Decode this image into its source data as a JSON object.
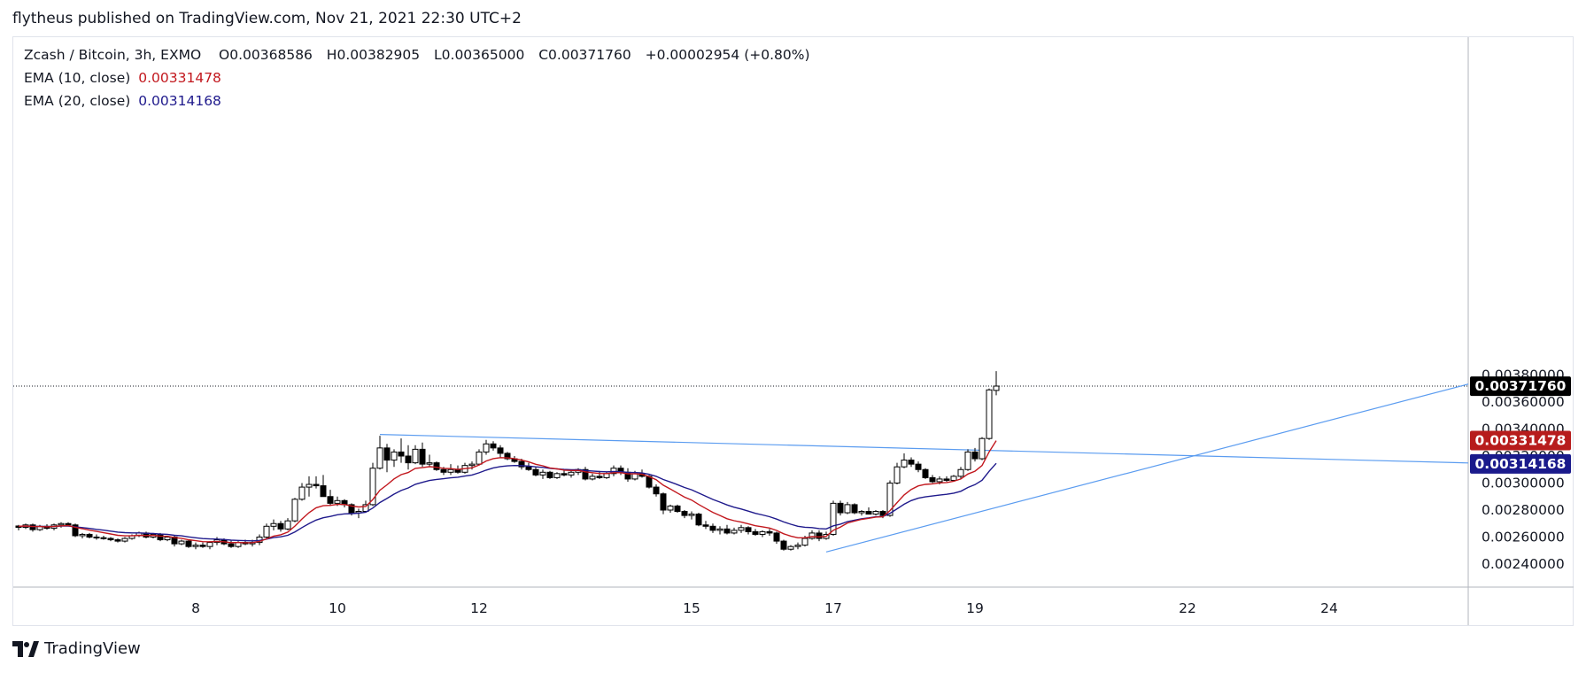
{
  "header": {
    "publish_line": "flytheus published on TradingView.com, Nov 21, 2021 22:30 UTC+2"
  },
  "brand": {
    "name": "TradingView"
  },
  "legend": {
    "symbol": "Zcash / Bitcoin, 3h, EXMO",
    "open_label": "O",
    "open": "0.00368586",
    "high_label": "H",
    "high": "0.00382905",
    "low_label": "L",
    "low": "0.00365000",
    "close_label": "C",
    "close": "0.00371760",
    "change": "+0.00002954 (+0.80%)",
    "ema10_label": "EMA (10, close)",
    "ema10_value": "0.00331478",
    "ema20_label": "EMA (20, close)",
    "ema20_value": "0.00314168"
  },
  "colors": {
    "ema10": "#c2181e",
    "ema20": "#1f1a8c",
    "trendline": "#5b9cf0",
    "candle_up_fill": "#ffffff",
    "candle_down_fill": "#000000",
    "candle_stroke": "#000000",
    "last_price_bg": "#000000",
    "ema10_badge_bg": "#b71c1c",
    "ema20_badge_bg": "#1a1a8c"
  },
  "chart_data": {
    "type": "candlestick",
    "title": "Zcash / Bitcoin, 3h, EXMO",
    "x_axis": {
      "ticks": [
        "8",
        "10",
        "12",
        "15",
        "17",
        "19",
        "22",
        "24"
      ],
      "tick_index": [
        25,
        45,
        65,
        95,
        115,
        135,
        165,
        185
      ]
    },
    "y_axis": {
      "ticks": [
        "0.00240000",
        "0.00260000",
        "0.00280000",
        "0.00300000",
        "0.00320000",
        "0.00340000",
        "0.00360000",
        "0.00380000"
      ],
      "range": [
        0.0023,
        0.0039
      ],
      "position": "right"
    },
    "price_labels": {
      "last": "0.00371760",
      "ema10": "0.00331478",
      "ema20": "0.00314168"
    },
    "candles": [
      [
        0.002682,
        0.00269,
        0.00265,
        0.002672
      ],
      [
        0.002672,
        0.0027,
        0.00266,
        0.00269
      ],
      [
        0.00269,
        0.0027,
        0.00264,
        0.002655
      ],
      [
        0.002655,
        0.00269,
        0.002645,
        0.00268
      ],
      [
        0.00268,
        0.002695,
        0.002655,
        0.002665
      ],
      [
        0.002665,
        0.0027,
        0.00265,
        0.00269
      ],
      [
        0.00269,
        0.00271,
        0.00267,
        0.0027
      ],
      [
        0.0027,
        0.00271,
        0.00268,
        0.00269
      ],
      [
        0.00269,
        0.0027,
        0.0026,
        0.00261
      ],
      [
        0.00261,
        0.00263,
        0.00259,
        0.00262
      ],
      [
        0.00262,
        0.00263,
        0.00259,
        0.0026
      ],
      [
        0.0026,
        0.00262,
        0.00258,
        0.002595
      ],
      [
        0.002595,
        0.00261,
        0.00258,
        0.00259
      ],
      [
        0.00259,
        0.0026,
        0.00257,
        0.00258
      ],
      [
        0.00258,
        0.00259,
        0.00256,
        0.00257
      ],
      [
        0.00257,
        0.0026,
        0.00256,
        0.00259
      ],
      [
        0.00259,
        0.00262,
        0.00258,
        0.00261
      ],
      [
        0.00261,
        0.00264,
        0.0026,
        0.00263
      ],
      [
        0.00263,
        0.00264,
        0.00259,
        0.0026
      ],
      [
        0.0026,
        0.00263,
        0.00259,
        0.00262
      ],
      [
        0.00262,
        0.00263,
        0.00257,
        0.00258
      ],
      [
        0.00258,
        0.00261,
        0.00257,
        0.0026
      ],
      [
        0.0026,
        0.00261,
        0.00253,
        0.00255
      ],
      [
        0.00255,
        0.00258,
        0.00254,
        0.00257
      ],
      [
        0.00257,
        0.00258,
        0.00252,
        0.00253
      ],
      [
        0.00253,
        0.00256,
        0.00251,
        0.00254
      ],
      [
        0.00254,
        0.00256,
        0.00252,
        0.00253
      ],
      [
        0.00253,
        0.00257,
        0.00251,
        0.00256
      ],
      [
        0.00256,
        0.0026,
        0.00254,
        0.00258
      ],
      [
        0.00258,
        0.00259,
        0.00254,
        0.00255
      ],
      [
        0.00255,
        0.00258,
        0.00252,
        0.00253
      ],
      [
        0.00253,
        0.00257,
        0.00252,
        0.00256
      ],
      [
        0.00256,
        0.00258,
        0.00254,
        0.00255
      ],
      [
        0.00255,
        0.00258,
        0.00253,
        0.00256
      ],
      [
        0.00256,
        0.00262,
        0.00254,
        0.0026
      ],
      [
        0.0026,
        0.0027,
        0.00259,
        0.00268
      ],
      [
        0.00268,
        0.00273,
        0.00265,
        0.0027
      ],
      [
        0.0027,
        0.00272,
        0.00264,
        0.00266
      ],
      [
        0.00266,
        0.00274,
        0.00265,
        0.00272
      ],
      [
        0.00272,
        0.00289,
        0.00271,
        0.00288
      ],
      [
        0.00288,
        0.003,
        0.00287,
        0.00297
      ],
      [
        0.00297,
        0.00305,
        0.0029,
        0.00299
      ],
      [
        0.00299,
        0.00305,
        0.00296,
        0.00298
      ],
      [
        0.00298,
        0.00306,
        0.0029,
        0.0029
      ],
      [
        0.0029,
        0.00295,
        0.00283,
        0.00285
      ],
      [
        0.00285,
        0.0029,
        0.00283,
        0.00287
      ],
      [
        0.00287,
        0.00288,
        0.00282,
        0.00284
      ],
      [
        0.00284,
        0.00285,
        0.00276,
        0.00278
      ],
      [
        0.00278,
        0.00281,
        0.00274,
        0.00279
      ],
      [
        0.00279,
        0.00287,
        0.00278,
        0.00284
      ],
      [
        0.00284,
        0.00315,
        0.00283,
        0.00311
      ],
      [
        0.00311,
        0.00335,
        0.0031,
        0.00326
      ],
      [
        0.00326,
        0.00329,
        0.00308,
        0.00317
      ],
      [
        0.00317,
        0.00325,
        0.00312,
        0.00323
      ],
      [
        0.00323,
        0.00333,
        0.00315,
        0.0032
      ],
      [
        0.0032,
        0.00328,
        0.0031,
        0.00315
      ],
      [
        0.00315,
        0.00328,
        0.00314,
        0.00325
      ],
      [
        0.00325,
        0.0033,
        0.00312,
        0.00314
      ],
      [
        0.00314,
        0.00321,
        0.00312,
        0.00315
      ],
      [
        0.00315,
        0.00316,
        0.00309,
        0.0031
      ],
      [
        0.0031,
        0.00312,
        0.00306,
        0.00308
      ],
      [
        0.00308,
        0.00314,
        0.00306,
        0.0031
      ],
      [
        0.0031,
        0.00313,
        0.00307,
        0.00308
      ],
      [
        0.00308,
        0.00315,
        0.00307,
        0.00313
      ],
      [
        0.00313,
        0.00316,
        0.0031,
        0.00314
      ],
      [
        0.00314,
        0.00325,
        0.00313,
        0.00323
      ],
      [
        0.00323,
        0.00332,
        0.00321,
        0.00329
      ],
      [
        0.00329,
        0.00331,
        0.00324,
        0.00326
      ],
      [
        0.00326,
        0.00328,
        0.00319,
        0.00322
      ],
      [
        0.00322,
        0.00323,
        0.00317,
        0.00318
      ],
      [
        0.00318,
        0.0032,
        0.00315,
        0.00316
      ],
      [
        0.00316,
        0.00318,
        0.0031,
        0.00312
      ],
      [
        0.00312,
        0.00315,
        0.00309,
        0.0031
      ],
      [
        0.0031,
        0.00312,
        0.00305,
        0.00306
      ],
      [
        0.00306,
        0.0031,
        0.00303,
        0.00308
      ],
      [
        0.00308,
        0.00309,
        0.00303,
        0.00304
      ],
      [
        0.00304,
        0.00308,
        0.00303,
        0.00307
      ],
      [
        0.00307,
        0.0031,
        0.00305,
        0.00306
      ],
      [
        0.00306,
        0.00309,
        0.00304,
        0.00308
      ],
      [
        0.00308,
        0.00311,
        0.00306,
        0.0031
      ],
      [
        0.0031,
        0.00312,
        0.00302,
        0.00303
      ],
      [
        0.00303,
        0.00307,
        0.00302,
        0.00305
      ],
      [
        0.00305,
        0.00309,
        0.00303,
        0.00304
      ],
      [
        0.00304,
        0.00308,
        0.00303,
        0.00307
      ],
      [
        0.00307,
        0.00313,
        0.00305,
        0.00311
      ],
      [
        0.00311,
        0.00313,
        0.00306,
        0.00308
      ],
      [
        0.00308,
        0.00311,
        0.00301,
        0.00303
      ],
      [
        0.00303,
        0.00309,
        0.00302,
        0.00307
      ],
      [
        0.00307,
        0.0031,
        0.00304,
        0.00305
      ],
      [
        0.00305,
        0.00306,
        0.00296,
        0.00297
      ],
      [
        0.00297,
        0.00299,
        0.0029,
        0.00292
      ],
      [
        0.00292,
        0.00293,
        0.00277,
        0.0028
      ],
      [
        0.0028,
        0.00284,
        0.00278,
        0.00283
      ],
      [
        0.00283,
        0.00284,
        0.00278,
        0.00279
      ],
      [
        0.00279,
        0.0028,
        0.00274,
        0.00276
      ],
      [
        0.00276,
        0.00279,
        0.00273,
        0.00277
      ],
      [
        0.00277,
        0.00278,
        0.00268,
        0.00269
      ],
      [
        0.00269,
        0.00272,
        0.00266,
        0.00268
      ],
      [
        0.00268,
        0.0027,
        0.00263,
        0.00265
      ],
      [
        0.00265,
        0.00268,
        0.00262,
        0.00266
      ],
      [
        0.00266,
        0.00269,
        0.00262,
        0.00263
      ],
      [
        0.00263,
        0.00267,
        0.00262,
        0.00265
      ],
      [
        0.00265,
        0.00269,
        0.00263,
        0.00267
      ],
      [
        0.00267,
        0.00268,
        0.00262,
        0.00264
      ],
      [
        0.00264,
        0.00266,
        0.00261,
        0.00262
      ],
      [
        0.00262,
        0.00265,
        0.0026,
        0.00264
      ],
      [
        0.00264,
        0.00266,
        0.00261,
        0.00263
      ],
      [
        0.00263,
        0.00264,
        0.00255,
        0.00257
      ],
      [
        0.00257,
        0.00258,
        0.0025,
        0.00251
      ],
      [
        0.00251,
        0.00254,
        0.0025,
        0.00253
      ],
      [
        0.00253,
        0.00256,
        0.00251,
        0.00254
      ],
      [
        0.00254,
        0.00261,
        0.00253,
        0.00259
      ],
      [
        0.00259,
        0.00265,
        0.00258,
        0.00263
      ],
      [
        0.00263,
        0.00265,
        0.00257,
        0.00259
      ],
      [
        0.00259,
        0.00264,
        0.00258,
        0.00262
      ],
      [
        0.00262,
        0.00287,
        0.00261,
        0.00285
      ],
      [
        0.00285,
        0.00287,
        0.00276,
        0.00278
      ],
      [
        0.00278,
        0.00286,
        0.00277,
        0.00284
      ],
      [
        0.00284,
        0.00285,
        0.00277,
        0.00278
      ],
      [
        0.00278,
        0.0028,
        0.00276,
        0.00279
      ],
      [
        0.00279,
        0.00282,
        0.00277,
        0.00277
      ],
      [
        0.00277,
        0.0028,
        0.00276,
        0.00279
      ],
      [
        0.00279,
        0.0028,
        0.00274,
        0.00276
      ],
      [
        0.00276,
        0.00302,
        0.00275,
        0.003
      ],
      [
        0.003,
        0.00315,
        0.00299,
        0.00312
      ],
      [
        0.00312,
        0.00322,
        0.00311,
        0.00317
      ],
      [
        0.00317,
        0.00319,
        0.00312,
        0.00314
      ],
      [
        0.00314,
        0.00316,
        0.00308,
        0.0031
      ],
      [
        0.0031,
        0.00311,
        0.00303,
        0.00304
      ],
      [
        0.00304,
        0.00306,
        0.003,
        0.00301
      ],
      [
        0.00301,
        0.00305,
        0.00299,
        0.00303
      ],
      [
        0.00303,
        0.00305,
        0.00301,
        0.00302
      ],
      [
        0.00302,
        0.00306,
        0.00301,
        0.00305
      ],
      [
        0.00305,
        0.00312,
        0.00303,
        0.0031
      ],
      [
        0.0031,
        0.00325,
        0.00309,
        0.00323
      ],
      [
        0.00323,
        0.00326,
        0.00316,
        0.00318
      ],
      [
        0.00318,
        0.00334,
        0.00317,
        0.00333
      ],
      [
        0.00333,
        0.0037,
        0.00332,
        0.00369
      ],
      [
        0.003686,
        0.003829,
        0.00365,
        0.003718
      ]
    ],
    "ema10": [
      0.00268,
      0.002682,
      0.002678,
      0.002678,
      0.002676,
      0.002679,
      0.002683,
      0.002685,
      0.002672,
      0.002662,
      0.002651,
      0.002642,
      0.002632,
      0.002623,
      0.002613,
      0.002609,
      0.002609,
      0.002613,
      0.002611,
      0.002613,
      0.002607,
      0.002606,
      0.002596,
      0.002591,
      0.00258,
      0.002573,
      0.002566,
      0.002565,
      0.002568,
      0.002565,
      0.002559,
      0.00256,
      0.002558,
      0.002559,
      0.002567,
      0.002587,
      0.002607,
      0.002617,
      0.002637,
      0.002681,
      0.002734,
      0.002781,
      0.002817,
      0.002832,
      0.002835,
      0.002842,
      0.002841,
      0.00283,
      0.002823,
      0.002826,
      0.002878,
      0.002947,
      0.002987,
      0.003031,
      0.003062,
      0.003078,
      0.003109,
      0.003114,
      0.003121,
      0.003117,
      0.003109,
      0.003107,
      0.003101,
      0.003107,
      0.003113,
      0.003134,
      0.003163,
      0.003181,
      0.003188,
      0.003186,
      0.003181,
      0.00317,
      0.003157,
      0.003139,
      0.003128,
      0.003112,
      0.003105,
      0.003096,
      0.003093,
      0.003094,
      0.003083,
      0.003077,
      0.003071,
      0.00307,
      0.003077,
      0.003077,
      0.003068,
      0.003068,
      0.003065,
      0.003048,
      0.003025,
      0.002984,
      0.002956,
      0.002926,
      0.002896,
      0.002874,
      0.002841,
      0.002812,
      0.002783,
      0.00276,
      0.002736,
      0.002721,
      0.002711,
      0.002698,
      0.002684,
      0.002676,
      0.002667,
      0.002649,
      0.002624,
      0.002607,
      0.002595,
      0.002595,
      0.002603,
      0.002601,
      0.002605,
      0.00265,
      0.002674,
      0.002704,
      0.002718,
      0.002731,
      0.002739,
      0.002748,
      0.00275,
      0.002796,
      0.002855,
      0.002912,
      0.002953,
      0.002979,
      0.00299,
      0.002994,
      0.003001,
      0.003004,
      0.003013,
      0.00303,
      0.003067,
      0.003088,
      0.00313,
      0.003231,
      0.003314
    ],
    "ema20": [
      0.00268,
      0.002681,
      0.002679,
      0.002679,
      0.002678,
      0.002679,
      0.002681,
      0.002682,
      0.002676,
      0.00267,
      0.002664,
      0.002657,
      0.002651,
      0.002644,
      0.002637,
      0.002633,
      0.002631,
      0.002631,
      0.002628,
      0.002627,
      0.002622,
      0.00262,
      0.002613,
      0.002609,
      0.002601,
      0.002595,
      0.002589,
      0.002586,
      0.002585,
      0.002582,
      0.002577,
      0.002575,
      0.002573,
      0.002572,
      0.002575,
      0.002585,
      0.002596,
      0.002602,
      0.002613,
      0.002638,
      0.00267,
      0.0027,
      0.002726,
      0.002743,
      0.002753,
      0.002765,
      0.002772,
      0.002774,
      0.002777,
      0.002784,
      0.002815,
      0.002856,
      0.002886,
      0.002918,
      0.002945,
      0.002964,
      0.002991,
      0.003005,
      0.003019,
      0.003027,
      0.003032,
      0.003039,
      0.003043,
      0.003052,
      0.00306,
      0.003076,
      0.003096,
      0.003112,
      0.003122,
      0.003127,
      0.00313,
      0.003129,
      0.003126,
      0.00312,
      0.003116,
      0.003109,
      0.003105,
      0.003101,
      0.003099,
      0.003099,
      0.003093,
      0.003089,
      0.003085,
      0.003083,
      0.003085,
      0.003084,
      0.003079,
      0.003078,
      0.003075,
      0.003065,
      0.00305,
      0.003026,
      0.003008,
      0.002988,
      0.002967,
      0.00295,
      0.002926,
      0.002902,
      0.002879,
      0.002859,
      0.002838,
      0.002821,
      0.002808,
      0.002792,
      0.002776,
      0.002764,
      0.002751,
      0.002733,
      0.002712,
      0.002695,
      0.00268,
      0.002673,
      0.00267,
      0.002663,
      0.00266,
      0.002683,
      0.002696,
      0.002715,
      0.002725,
      0.002736,
      0.002742,
      0.00275,
      0.002752,
      0.002776,
      0.002809,
      0.002843,
      0.00287,
      0.002888,
      0.002898,
      0.002904,
      0.002911,
      0.002917,
      0.002925,
      0.002939,
      0.002967,
      0.002988,
      0.003021,
      0.003087,
      0.003146
    ],
    "trendlines": [
      {
        "from": [
          51,
          0.00336
        ],
        "to": [
          211,
          0.00314
        ]
      },
      {
        "from": [
          114,
          0.00249
        ],
        "to": [
          211,
          0.00382
        ]
      }
    ],
    "grid": false,
    "legend_position": "top-left"
  }
}
